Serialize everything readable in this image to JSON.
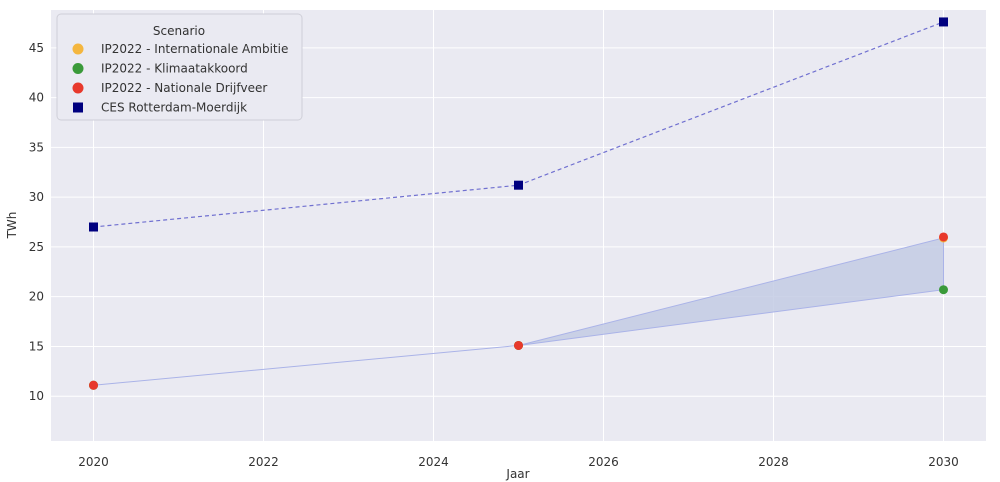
{
  "chart_data": {
    "type": "line",
    "xlabel": "Jaar",
    "ylabel": "TWh",
    "xlim": [
      2019.5,
      2030.5
    ],
    "ylim": [
      5.5,
      48.8
    ],
    "xticks": [
      2020,
      2022,
      2024,
      2026,
      2028,
      2030
    ],
    "yticks": [
      10,
      15,
      20,
      25,
      30,
      35,
      40,
      45
    ],
    "grid": true,
    "legend": {
      "title": "Scenario",
      "placement": "top-left"
    },
    "series": [
      {
        "name": "IP2022 - Internationale Ambitie",
        "marker": "circle",
        "color": "#f4b63f",
        "x": [
          2020,
          2025,
          2030
        ],
        "y": [
          11.1,
          15.1,
          25.9
        ]
      },
      {
        "name": "IP2022 - Klimaatakkoord",
        "marker": "circle",
        "color": "#3a9a3a",
        "x": [
          2020,
          2025,
          2030
        ],
        "y": [
          11.1,
          15.1,
          20.7
        ]
      },
      {
        "name": "IP2022 - Nationale Drijfveer",
        "marker": "circle",
        "color": "#e8392c",
        "x": [
          2020,
          2025,
          2030
        ],
        "y": [
          11.1,
          15.1,
          26.0
        ]
      },
      {
        "name": "CES Rotterdam-Moerdijk",
        "marker": "square",
        "color": "#00007f",
        "x": [
          2020,
          2025,
          2030
        ],
        "y": [
          27.0,
          31.2,
          47.6
        ]
      }
    ],
    "band": {
      "x": [
        2020,
        2025,
        2030
      ],
      "low": [
        11.1,
        15.1,
        20.7
      ],
      "high": [
        11.1,
        15.1,
        25.9
      ],
      "color": "#c3cbe4"
    },
    "colors": {
      "plot_background": "#eaeaf2",
      "grid": "#ffffff",
      "band_edge": "#aab3e8",
      "dashed_line": "#7070d0"
    }
  }
}
